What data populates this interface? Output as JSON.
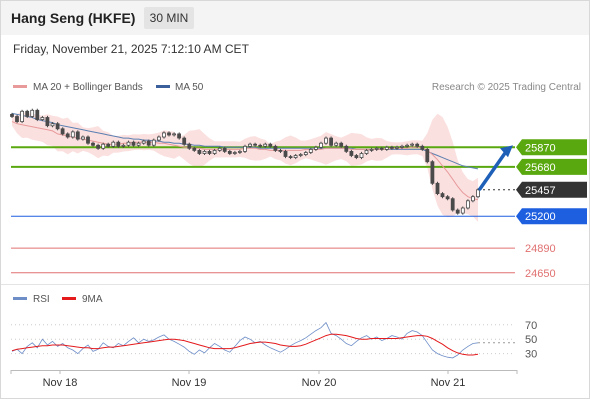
{
  "header": {
    "instrument": "Hang Seng (HKFE)",
    "interval": "30 MIN",
    "datetime": "Friday, November 21, 2025 7:12:10 AM CET"
  },
  "legend": {
    "ma20": "MA 20 + Bollinger Bands",
    "ma50": "MA 50",
    "copyright": "Research © 2025 Trading Central",
    "rsi": "RSI",
    "rsi_ma": "9MA"
  },
  "colors": {
    "candle": "#4a4a4a",
    "ma20": "#e89a9a",
    "bollinger_fill": "#fbe0e0",
    "ma50": "#5a7fb0",
    "resistance": "#5aa80f",
    "support": "#1e5fe0",
    "deep_support": "#e07070",
    "price": "#333333",
    "arrow": "#1e5fb8",
    "rsi": "#6e8ec8",
    "rsi_ma": "#e41a1c"
  },
  "chart_data": [
    {
      "type": "line",
      "title": "Hang Seng (HKFE) 30 MIN",
      "x_tick_labels": [
        "Nov 18",
        "Nov 19",
        "Nov 20",
        "Nov 21"
      ],
      "y_range": [
        24580,
        26330
      ],
      "levels": [
        {
          "label": "25870",
          "value": 25870,
          "kind": "resistance"
        },
        {
          "label": "25680",
          "value": 25680,
          "kind": "resistance"
        },
        {
          "label": "25457",
          "value": 25457,
          "kind": "price"
        },
        {
          "label": "25200",
          "value": 25200,
          "kind": "support"
        },
        {
          "label": "24890",
          "value": 24890,
          "kind": "deep_support"
        },
        {
          "label": "24650",
          "value": 24650,
          "kind": "deep_support"
        }
      ],
      "series": [
        {
          "name": "Hang Seng (HKFE)",
          "close": [
            26170,
            26120,
            26220,
            26170,
            26230,
            26140,
            26160,
            26080,
            26100,
            26050,
            26000,
            25970,
            26020,
            25950,
            25970,
            25910,
            25890,
            25860,
            25900,
            25880,
            25920,
            25880,
            25890,
            25920,
            25890,
            25910,
            25930,
            25890,
            25940,
            25970,
            26010,
            25990,
            26000,
            25960,
            25900,
            25860,
            25840,
            25810,
            25830,
            25810,
            25840,
            25860,
            25830,
            25810,
            25820,
            25830,
            25880,
            25900,
            25890,
            25880,
            25900,
            25880,
            25840,
            25830,
            25780,
            25770,
            25790,
            25800,
            25820,
            25850,
            25870,
            25910,
            25960,
            25890,
            25910,
            25880,
            25830,
            25790,
            25770,
            25810,
            25840,
            25850,
            25860,
            25850,
            25870,
            25860,
            25870,
            25880,
            25890,
            25900,
            25880,
            25850,
            25730,
            25520,
            25420,
            25390,
            25370,
            25260,
            25230,
            25280,
            25350,
            25390,
            25457
          ]
        },
        {
          "name": "MA 20",
          "values": [
            26120,
            26100,
            26090,
            26080,
            26070,
            26060,
            26050,
            26040,
            26030,
            26000,
            25990,
            25980,
            25970,
            25960,
            25950,
            25940,
            25930,
            25920,
            25910,
            25900,
            25900,
            25900,
            25910,
            25910,
            25920,
            25920,
            25920,
            25920,
            25920,
            25910,
            25910,
            25900,
            25890,
            25880,
            25870,
            25870,
            25860,
            25860,
            25850,
            25850,
            25850,
            25850,
            25850,
            25850,
            25850,
            25850,
            25860,
            25860,
            25860,
            25850,
            25850,
            25840,
            25840,
            25840,
            25840,
            25840,
            25840,
            25840,
            25850,
            25850,
            25850,
            25850,
            25860,
            25860,
            25860,
            25860,
            25860,
            25850,
            25850,
            25850,
            25850,
            25850,
            25850,
            25850,
            25850,
            25860,
            25860,
            25860,
            25860,
            25870,
            25870,
            25860,
            25840,
            25800,
            25750,
            25690,
            25630,
            25560,
            25490,
            25430,
            25390,
            25370,
            25360
          ]
        },
        {
          "name": "MA 50",
          "values": [
            26200,
            26190,
            26180,
            26170,
            26160,
            26140,
            26130,
            26120,
            26110,
            26090,
            26080,
            26070,
            26060,
            26050,
            26040,
            26030,
            26020,
            26010,
            26000,
            25990,
            25980,
            25970,
            25960,
            25960,
            25950,
            25950,
            25940,
            25940,
            25930,
            25930,
            25920,
            25920,
            25910,
            25910,
            25900,
            25900,
            25890,
            25890,
            25880,
            25880,
            25880,
            25880,
            25870,
            25870,
            25870,
            25870,
            25870,
            25870,
            25870,
            25860,
            25860,
            25860,
            25860,
            25860,
            25860,
            25860,
            25860,
            25860,
            25860,
            25860,
            25860,
            25860,
            25860,
            25860,
            25860,
            25860,
            25860,
            25860,
            25850,
            25850,
            25850,
            25850,
            25850,
            25850,
            25850,
            25850,
            25850,
            25850,
            25850,
            25850,
            25850,
            25850,
            25830,
            25810,
            25790,
            25770,
            25750,
            25730,
            25710,
            25690,
            25680,
            25670,
            25660
          ]
        }
      ],
      "annotation": {
        "type": "arrow",
        "from": 25680,
        "to": 25870
      }
    },
    {
      "type": "line",
      "title": "RSI",
      "y_tick_labels": [
        "70",
        "50",
        "30"
      ],
      "y_range": [
        10,
        85
      ],
      "series": [
        {
          "name": "RSI",
          "values": [
            33,
            36,
            30,
            40,
            45,
            38,
            50,
            42,
            47,
            40,
            44,
            38,
            35,
            30,
            37,
            42,
            33,
            36,
            45,
            40,
            38,
            44,
            41,
            47,
            52,
            45,
            50,
            47,
            49,
            53,
            56,
            50,
            47,
            43,
            39,
            33,
            29,
            35,
            31,
            38,
            44,
            40,
            35,
            32,
            40,
            48,
            53,
            50,
            45,
            47,
            42,
            38,
            35,
            32,
            36,
            41,
            45,
            48,
            52,
            57,
            62,
            66,
            73,
            58,
            55,
            50,
            44,
            41,
            47,
            52,
            55,
            50,
            53,
            48,
            51,
            55,
            53,
            50,
            58,
            62,
            60,
            55,
            45,
            35,
            30,
            27,
            25,
            24,
            28,
            35,
            40,
            44,
            45
          ]
        },
        {
          "name": "9MA",
          "values": [
            34,
            36,
            37,
            38,
            39,
            40,
            41,
            41,
            42,
            42,
            42,
            41,
            40,
            39,
            38,
            38,
            37,
            37,
            38,
            39,
            39,
            40,
            41,
            42,
            43,
            44,
            45,
            46,
            47,
            48,
            49,
            50,
            50,
            49,
            48,
            46,
            44,
            42,
            40,
            38,
            37,
            37,
            37,
            37,
            38,
            40,
            42,
            44,
            45,
            46,
            46,
            45,
            44,
            42,
            41,
            40,
            40,
            41,
            43,
            46,
            49,
            52,
            55,
            57,
            57,
            56,
            55,
            53,
            51,
            50,
            50,
            51,
            51,
            51,
            51,
            51,
            51,
            52,
            53,
            54,
            55,
            55,
            54,
            51,
            47,
            43,
            38,
            34,
            31,
            29,
            28,
            28,
            29
          ]
        }
      ]
    }
  ]
}
